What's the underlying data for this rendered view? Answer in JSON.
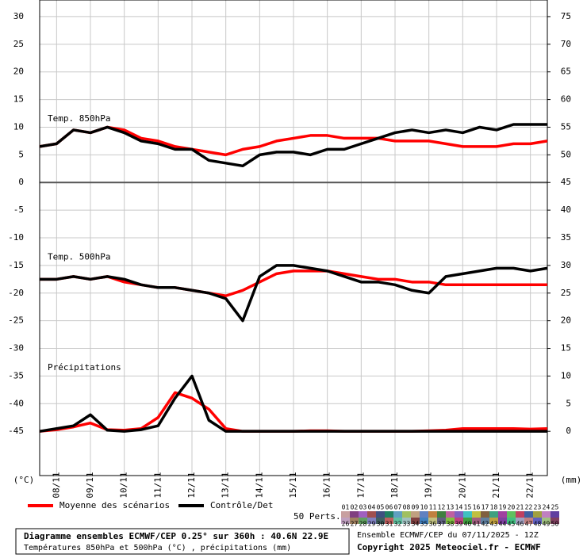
{
  "chart_data": {
    "type": "line",
    "annotations": [
      "Temp. 850hPa",
      "Temp. 500hPa",
      "Précipitations"
    ],
    "y_label": "(°C)",
    "y2_label": "(mm)",
    "x": [
      0,
      12,
      24,
      36,
      48,
      60,
      72,
      84,
      96,
      108,
      120,
      132,
      144,
      156,
      168,
      180,
      192,
      204,
      216,
      228,
      240,
      252,
      264,
      276,
      288,
      300,
      312,
      324,
      336,
      348,
      360
    ],
    "xlim": [
      0,
      360
    ],
    "xticks": [
      {
        "value": 12,
        "label": "08/11"
      },
      {
        "value": 36,
        "label": "09/11"
      },
      {
        "value": 60,
        "label": "10/11"
      },
      {
        "value": 84,
        "label": "11/11"
      },
      {
        "value": 108,
        "label": "12/11"
      },
      {
        "value": 132,
        "label": "13/11"
      },
      {
        "value": 156,
        "label": "14/11"
      },
      {
        "value": 180,
        "label": "15/11"
      },
      {
        "value": 204,
        "label": "16/11"
      },
      {
        "value": 228,
        "label": "17/11"
      },
      {
        "value": 252,
        "label": "18/11"
      },
      {
        "value": 276,
        "label": "19/11"
      },
      {
        "value": 300,
        "label": "20/11"
      },
      {
        "value": 324,
        "label": "21/11"
      },
      {
        "value": 348,
        "label": "22/11"
      }
    ],
    "ylim": [
      -53,
      33
    ],
    "yticks": [
      30,
      25,
      20,
      15,
      10,
      5,
      0,
      -5,
      -10,
      -15,
      -20,
      -25,
      -30,
      -35,
      -40,
      -45
    ],
    "y2lim": [
      -8,
      78
    ],
    "y2ticks": [
      75,
      70,
      65,
      60,
      55,
      50,
      45,
      40,
      35,
      30,
      25,
      20,
      15,
      10,
      5,
      0
    ],
    "grid": true,
    "series": [
      {
        "name": "Moyenne des scénarios",
        "color": "#ff0000",
        "t850": [
          6.5,
          7,
          9.5,
          9,
          10,
          9.5,
          8,
          7.5,
          6.5,
          6,
          5.5,
          5,
          6,
          6.5,
          7.5,
          8,
          8.5,
          8.5,
          8,
          8,
          8,
          7.5,
          7.5,
          7.5,
          7,
          6.5,
          6.5,
          6.5,
          7,
          7,
          7.5
        ],
        "t500": [
          -17.5,
          -17.5,
          -17,
          -17.5,
          -17,
          -18,
          -18.5,
          -19,
          -19,
          -19.5,
          -20,
          -20.5,
          -19.5,
          -18,
          -16.5,
          -16,
          -16,
          -16,
          -16.5,
          -17,
          -17.5,
          -17.5,
          -18,
          -18,
          -18.5,
          -18.5,
          -18.5,
          -18.5,
          -18.5,
          -18.5,
          -18.5
        ],
        "precip": [
          0,
          0.3,
          0.8,
          1.5,
          0.3,
          0.2,
          0.5,
          2.5,
          7,
          6,
          4,
          0.5,
          0,
          0,
          0,
          0,
          0.1,
          0.1,
          0,
          0,
          0,
          0,
          0,
          0.1,
          0.2,
          0.5,
          0.5,
          0.5,
          0.5,
          0.4,
          0.5
        ]
      },
      {
        "name": "Contrôle/Det",
        "color": "#000000",
        "t850": [
          6.5,
          7,
          9.5,
          9,
          10,
          9,
          7.5,
          7,
          6,
          6,
          4,
          3.5,
          3,
          5,
          5.5,
          5.5,
          5,
          6,
          6,
          7,
          8,
          9,
          9.5,
          9,
          9.5,
          9,
          10,
          9.5,
          10.5,
          10.5,
          10.5
        ],
        "t500": [
          -17.5,
          -17.5,
          -17,
          -17.5,
          -17,
          -17.5,
          -18.5,
          -19,
          -19,
          -19.5,
          -20,
          -21,
          -25,
          -17,
          -15,
          -15,
          -15.5,
          -16,
          -17,
          -18,
          -18,
          -18.5,
          -19.5,
          -20,
          -17,
          -16.5,
          -16,
          -15.5,
          -15.5,
          -16,
          -15.5
        ],
        "precip": [
          0,
          0.5,
          1,
          3,
          0.2,
          0,
          0.3,
          1,
          6,
          10,
          2,
          0,
          0,
          0,
          0,
          0,
          0,
          0,
          0,
          0,
          0,
          0,
          0,
          0,
          0,
          0,
          0,
          0,
          0,
          0,
          0
        ]
      }
    ],
    "perturbations": {
      "label": "50 Perts.",
      "names": [
        "01",
        "02",
        "03",
        "04",
        "05",
        "06",
        "07",
        "08",
        "09",
        "10",
        "11",
        "12",
        "13",
        "14",
        "15",
        "16",
        "17",
        "18",
        "19",
        "20",
        "21",
        "22",
        "23",
        "24",
        "25",
        "26",
        "27",
        "28",
        "29",
        "30",
        "31",
        "32",
        "33",
        "34",
        "35",
        "36",
        "37",
        "38",
        "39",
        "40",
        "41",
        "42",
        "43",
        "44",
        "45",
        "46",
        "47",
        "48",
        "49",
        "50"
      ],
      "colors": [
        "#c8a0a0",
        "#804080",
        "#a060c0",
        "#a05050",
        "#405080",
        "#208060",
        "#60a0c0",
        "#a0c060",
        "#c0a080",
        "#6080c0",
        "#c08040",
        "#408040",
        "#c060a0",
        "#8060c0",
        "#40c0c0",
        "#c0c040",
        "#806040",
        "#40a080",
        "#a040a0",
        "#60c060",
        "#c04060",
        "#4060a0",
        "#a0a040",
        "#c080c0",
        "#6040a0",
        "#c0a0c0",
        "#a08060",
        "#60a060",
        "#8080c0",
        "#406060",
        "#c06060",
        "#60c0a0",
        "#a0c0c0",
        "#804040",
        "#4080c0",
        "#c0c080",
        "#606080",
        "#80c040",
        "#c04080",
        "#40a040",
        "#a06080",
        "#6080a0",
        "#c0a040",
        "#8040a0",
        "#40c080",
        "#a0a0c0",
        "#c08080",
        "#6060c0",
        "#a0c080",
        "#804060"
      ]
    },
    "footer": {
      "title": "Diagramme ensembles ECMWF/CEP 0.25° sur 360h : 40.6N 22.9E",
      "subtitle": "Températures 850hPa et 500hPa (°C) , précipitations (mm)",
      "run": "Ensemble ECMWF/CEP du 07/11/2025 - 12Z",
      "copyright": "Copyright 2025 Meteociel.fr - ECMWF"
    }
  }
}
